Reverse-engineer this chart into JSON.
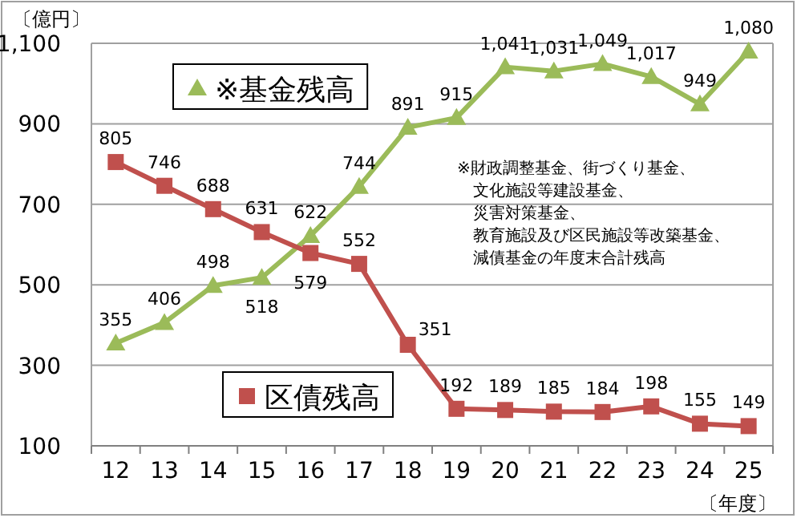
{
  "chart_data": {
    "type": "line",
    "xlabel": "〔年度〕",
    "ylabel": "〔億円〕",
    "categories": [
      "12",
      "13",
      "14",
      "15",
      "16",
      "17",
      "18",
      "19",
      "20",
      "21",
      "22",
      "23",
      "24",
      "25"
    ],
    "series": [
      {
        "name": "※基金残高",
        "color": "#9bbb59",
        "marker": "triangle",
        "values": [
          355,
          406,
          498,
          518,
          622,
          744,
          891,
          915,
          1041,
          1031,
          1049,
          1017,
          949,
          1080
        ],
        "value_labels": [
          "355",
          "406",
          "498",
          "518",
          "622",
          "744",
          "891",
          "915",
          "1,041",
          "1,031",
          "1,049",
          "1,017",
          "949",
          "1,080"
        ]
      },
      {
        "name": "区債残高",
        "color": "#c0504d",
        "marker": "square",
        "values": [
          805,
          746,
          688,
          631,
          579,
          552,
          351,
          192,
          189,
          185,
          184,
          198,
          155,
          149
        ],
        "value_labels": [
          "805",
          "746",
          "688",
          "631",
          "579",
          "552",
          "351",
          "192",
          "189",
          "185",
          "184",
          "198",
          "155",
          "149"
        ]
      }
    ],
    "ylim": [
      100,
      1100
    ],
    "yticks": [
      100,
      300,
      500,
      700,
      900,
      {
        "value": 1100,
        "label": "1,100"
      }
    ],
    "grid": "y",
    "line_style": "solid",
    "legend": "top left",
    "annotations": [
      "※財政調整基金、街づくり基金、",
      "文化施設等建設基金、",
      "災害対策基金、",
      "教育施設及び区民施設等改築基金、",
      "減債基金の年度末合計残高"
    ]
  }
}
